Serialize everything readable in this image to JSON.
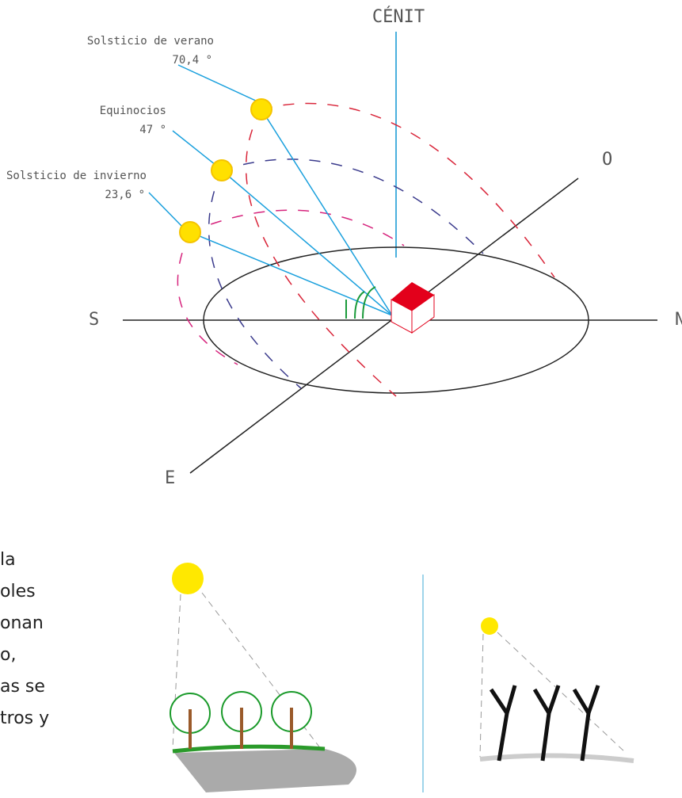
{
  "diagram": {
    "zenith": "CÉNIT",
    "suns": [
      {
        "label": "Solsticio de verano",
        "angle": "70,4 °"
      },
      {
        "label": "Equinocios",
        "angle": "47 °"
      },
      {
        "label": "Solsticio de invierno",
        "angle": "23,6 °"
      }
    ],
    "directions": {
      "west": "O",
      "south": "S",
      "north": "N",
      "east": "E"
    }
  },
  "body_text": [
    "la",
    "oles",
    "onan",
    "o,",
    "as se",
    "tros y"
  ]
}
